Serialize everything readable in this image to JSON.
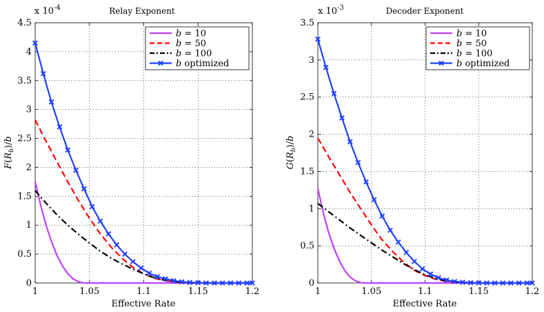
{
  "chart_data": [
    {
      "type": "line",
      "title": "Relay Exponent",
      "xlabel": "Effective Rate",
      "ylabel": "F(R_b)/b",
      "ylabel_main": "F",
      "ylabel_open": "(",
      "ylabel_var": "R",
      "ylabel_sub": "b",
      "ylabel_close": ")/",
      "ylabel_div": "b",
      "exponent_prefix": "x 10",
      "exponent_power": "-4",
      "xlim": [
        1,
        1.2
      ],
      "ylim": [
        0,
        4.5
      ],
      "xticks": [
        "1",
        "1.05",
        "1.1",
        "1.15",
        "1.2"
      ],
      "yticks": [
        "0",
        "0.5",
        "1",
        "1.5",
        "2",
        "2.5",
        "3",
        "3.5",
        "4",
        "4.5"
      ],
      "grid": true,
      "legend_position": "top-right",
      "series": [
        {
          "name": "b = 10",
          "legend_var": "b",
          "legend_rest": " = 10",
          "color": "#bf3fff",
          "style": "solid",
          "marker": "none",
          "x": [
            1,
            1.005,
            1.01,
            1.015,
            1.02,
            1.025,
            1.03,
            1.035,
            1.04,
            1.045,
            1.05,
            1.1,
            1.2
          ],
          "y": [
            1.75,
            1.35,
            1.0,
            0.72,
            0.48,
            0.3,
            0.16,
            0.07,
            0.02,
            0.0,
            0.0,
            0.0,
            0.0
          ]
        },
        {
          "name": "b = 50",
          "legend_var": "b",
          "legend_rest": " = 50",
          "color": "#ff0000",
          "style": "dashed",
          "marker": "none",
          "x": [
            1,
            1.01,
            1.02,
            1.03,
            1.04,
            1.05,
            1.06,
            1.07,
            1.08,
            1.09,
            1.1,
            1.11,
            1.12,
            1.13,
            1.14,
            1.15,
            1.2
          ],
          "y": [
            2.82,
            2.45,
            2.1,
            1.75,
            1.42,
            1.12,
            0.85,
            0.62,
            0.43,
            0.27,
            0.16,
            0.08,
            0.04,
            0.015,
            0.005,
            0.0,
            0.0
          ]
        },
        {
          "name": "b = 100",
          "legend_var": "b",
          "legend_rest": " = 100",
          "color": "#000000",
          "style": "dashdot",
          "marker": "none",
          "x": [
            1,
            1.01,
            1.02,
            1.03,
            1.04,
            1.05,
            1.06,
            1.07,
            1.08,
            1.09,
            1.1,
            1.11,
            1.12,
            1.13,
            1.14,
            1.15,
            1.2
          ],
          "y": [
            1.6,
            1.38,
            1.18,
            1.0,
            0.84,
            0.69,
            0.55,
            0.43,
            0.33,
            0.24,
            0.16,
            0.09,
            0.045,
            0.02,
            0.005,
            0.0,
            0.0
          ]
        },
        {
          "name": "b optimized",
          "legend_var": "b",
          "legend_rest": " optimized",
          "color": "#1f3fff",
          "style": "solid",
          "marker": "x",
          "x": [
            1,
            1.0075,
            1.015,
            1.0225,
            1.03,
            1.0375,
            1.045,
            1.0525,
            1.06,
            1.0675,
            1.075,
            1.0825,
            1.09,
            1.0975,
            1.105,
            1.1125,
            1.12,
            1.1275,
            1.135,
            1.1425,
            1.15,
            1.1575,
            1.165,
            1.1725,
            1.18,
            1.1875,
            1.195,
            1.2
          ],
          "y": [
            4.15,
            3.62,
            3.13,
            2.7,
            2.3,
            1.95,
            1.63,
            1.32,
            1.07,
            0.85,
            0.66,
            0.5,
            0.37,
            0.26,
            0.17,
            0.11,
            0.07,
            0.04,
            0.02,
            0.01,
            0.005,
            0.0,
            0.0,
            0.0,
            0.0,
            0.0,
            0.0,
            0.0
          ]
        }
      ]
    },
    {
      "type": "line",
      "title": "Decoder Exponent",
      "xlabel": "Effective Rate",
      "ylabel": "G(R_b)/b",
      "ylabel_main": "G",
      "ylabel_open": "(",
      "ylabel_var": "R",
      "ylabel_sub": "b",
      "ylabel_close": ")/",
      "ylabel_div": "b",
      "exponent_prefix": "x 10",
      "exponent_power": "-3",
      "xlim": [
        1,
        1.2
      ],
      "ylim": [
        0,
        3.5
      ],
      "xticks": [
        "1",
        "1.05",
        "1.1",
        "1.15",
        "1.2"
      ],
      "yticks": [
        "0",
        "0.5",
        "1",
        "1.5",
        "2",
        "2.5",
        "3",
        "3.5"
      ],
      "grid": true,
      "legend_position": "top-right",
      "series": [
        {
          "name": "b = 10",
          "legend_var": "b",
          "legend_rest": " = 10",
          "color": "#bf3fff",
          "style": "solid",
          "marker": "none",
          "x": [
            1,
            1.005,
            1.01,
            1.015,
            1.02,
            1.025,
            1.03,
            1.035,
            1.04,
            1.045,
            1.05,
            1.1,
            1.2
          ],
          "y": [
            1.27,
            0.95,
            0.68,
            0.47,
            0.3,
            0.17,
            0.08,
            0.03,
            0.005,
            0.0,
            0.0,
            0.0,
            0.0
          ]
        },
        {
          "name": "b = 50",
          "legend_var": "b",
          "legend_rest": " = 50",
          "color": "#ff0000",
          "style": "dashed",
          "marker": "none",
          "x": [
            1,
            1.01,
            1.02,
            1.03,
            1.04,
            1.05,
            1.06,
            1.07,
            1.08,
            1.09,
            1.1,
            1.11,
            1.12,
            1.13,
            1.14,
            1.15,
            1.2
          ],
          "y": [
            1.95,
            1.7,
            1.46,
            1.22,
            1.0,
            0.78,
            0.58,
            0.42,
            0.28,
            0.17,
            0.1,
            0.05,
            0.02,
            0.008,
            0.002,
            0.0,
            0.0
          ]
        },
        {
          "name": "b = 100",
          "legend_var": "b",
          "legend_rest": " = 100",
          "color": "#000000",
          "style": "dashdot",
          "marker": "none",
          "x": [
            1,
            1.01,
            1.02,
            1.03,
            1.04,
            1.05,
            1.06,
            1.07,
            1.08,
            1.09,
            1.1,
            1.11,
            1.12,
            1.13,
            1.14,
            1.15,
            1.2
          ],
          "y": [
            1.07,
            0.96,
            0.85,
            0.74,
            0.64,
            0.54,
            0.44,
            0.35,
            0.26,
            0.18,
            0.11,
            0.06,
            0.03,
            0.01,
            0.003,
            0.0,
            0.0
          ]
        },
        {
          "name": "b optimized",
          "legend_var": "b",
          "legend_rest": " optimized",
          "color": "#1f3fff",
          "style": "solid",
          "marker": "x",
          "x": [
            1,
            1.0075,
            1.015,
            1.0225,
            1.03,
            1.0375,
            1.045,
            1.0525,
            1.06,
            1.0675,
            1.075,
            1.0825,
            1.09,
            1.0975,
            1.105,
            1.1125,
            1.12,
            1.1275,
            1.135,
            1.1425,
            1.15,
            1.1575,
            1.165,
            1.1725,
            1.18,
            1.1875,
            1.195,
            1.2
          ],
          "y": [
            3.28,
            2.9,
            2.55,
            2.22,
            1.9,
            1.62,
            1.36,
            1.12,
            0.9,
            0.71,
            0.55,
            0.41,
            0.29,
            0.19,
            0.12,
            0.07,
            0.04,
            0.02,
            0.01,
            0.004,
            0.002,
            0.0,
            0.0,
            0.0,
            0.0,
            0.0,
            0.0,
            0.0
          ]
        }
      ]
    }
  ]
}
